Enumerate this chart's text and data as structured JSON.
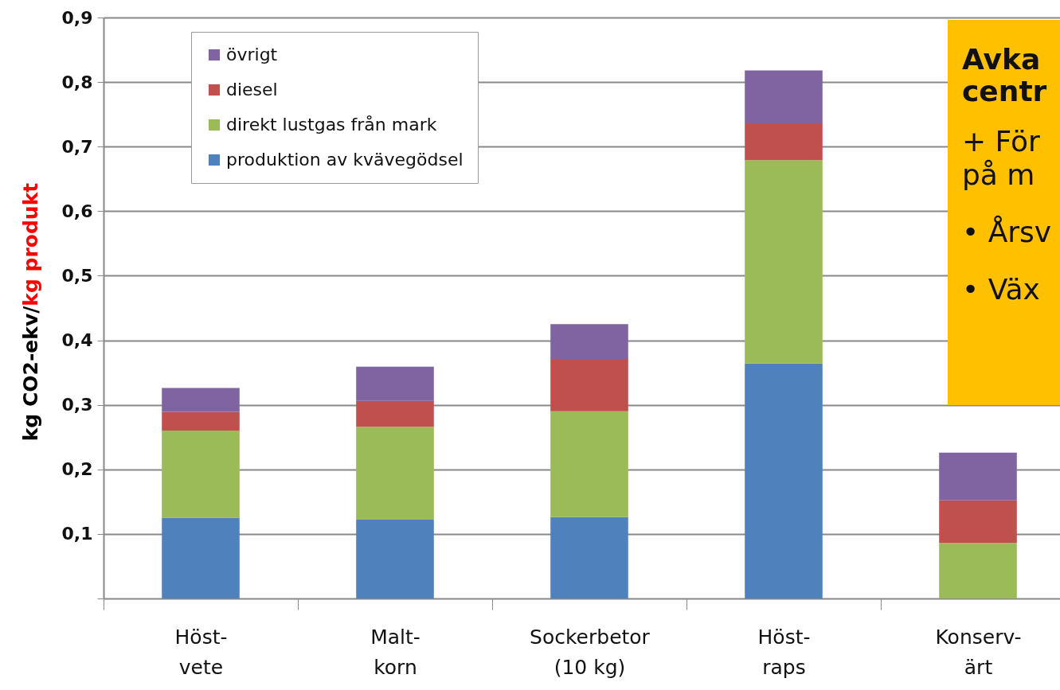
{
  "chart_data": {
    "type": "bar",
    "stacked": true,
    "ylabel": "kg CO2-ekv/kg produkt",
    "categories": [
      "Höst-\nvete",
      "Malt-\nkorn",
      "Sockerbetor\n(10 kg)",
      "Höst-\nraps",
      "Konserv-\närt"
    ],
    "series": [
      {
        "name": "produktion av kvävegödsel",
        "color": "#4f81bd",
        "values": [
          0.125,
          0.122,
          0.126,
          0.364,
          0
        ]
      },
      {
        "name": "direkt lustgas från mark",
        "color": "#9bbb59",
        "values": [
          0.135,
          0.144,
          0.164,
          0.315,
          0.086
        ]
      },
      {
        "name": "diesel",
        "color": "#c0504d",
        "values": [
          0.029,
          0.04,
          0.081,
          0.057,
          0.066
        ]
      },
      {
        "name": "övrigt",
        "color": "#8064a2",
        "values": [
          0.037,
          0.053,
          0.054,
          0.082,
          0.074
        ]
      }
    ],
    "ylim": [
      0,
      0.9
    ],
    "yticks": [
      {
        "value": 0,
        "label": null
      },
      {
        "value": 0.1,
        "label": "0,1"
      },
      {
        "value": 0.2,
        "label": "0,2"
      },
      {
        "value": 0.3,
        "label": "0,3"
      },
      {
        "value": 0.4,
        "label": "0,4"
      },
      {
        "value": 0.5,
        "label": "0,5"
      },
      {
        "value": 0.6,
        "label": "0,6"
      },
      {
        "value": 0.7,
        "label": "0,7"
      },
      {
        "value": 0.8,
        "label": "0,8"
      },
      {
        "value": 0.9,
        "label": "0,9"
      }
    ],
    "grid": "y",
    "legend": "top left",
    "annotations": [
      "Avka",
      "centr",
      "+ För",
      "på m",
      "• Årsv",
      "• Väx"
    ]
  }
}
